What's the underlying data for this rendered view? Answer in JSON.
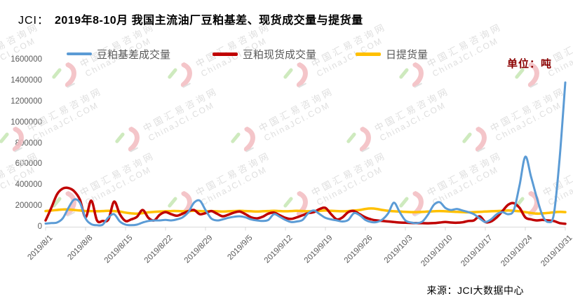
{
  "header": {
    "prefix": "JCI：",
    "title": "2019年8-10月 我国主流油厂豆粕基差、现货成交量与提货量"
  },
  "unit_label": "单位：吨",
  "source_label": "来源：JCI大数据中心",
  "watermark": {
    "line1": "中国汇易咨询网",
    "line2": "ChinaJCI.COM"
  },
  "colors": {
    "basis_line": "#5B9BD5",
    "spot_line": "#C00000",
    "pickup_line": "#FFC000",
    "axis_text": "#595959",
    "axis_line": "#D9D9D9",
    "unit_text": "#8B0000"
  },
  "chart_data": {
    "type": "line",
    "title": "2019年8-10月 我国主流油厂豆粕基差、现货成交量与提货量",
    "unit": "吨",
    "legend_position": "top",
    "grid": false,
    "ylim": [
      0,
      1600000
    ],
    "y_ticks": [
      0,
      200000,
      400000,
      600000,
      800000,
      1000000,
      1200000,
      1400000,
      1600000
    ],
    "start_date": "2019/8/1",
    "end_date": "2019/10/31",
    "days_total": 92,
    "x_tick_day_index": [
      0,
      7,
      14,
      21,
      28,
      35,
      42,
      49,
      56,
      63,
      70,
      77,
      84,
      91
    ],
    "x_tick_labels": [
      "2019/8/1",
      "2019/8/8",
      "2019/8/15",
      "2019/8/22",
      "2019/8/29",
      "2019/9/5",
      "2019/9/12",
      "2019/9/19",
      "2019/9/26",
      "2019/10/3",
      "2019/10/10",
      "2019/10/17",
      "2019/10/24",
      "2019/10/31"
    ],
    "series": [
      {
        "name": "豆粕基差成交量",
        "color": "#5B9BD5",
        "width": 3,
        "values": [
          30000,
          35000,
          40000,
          80000,
          180000,
          260000,
          230000,
          80000,
          25000,
          15000,
          20000,
          90000,
          120000,
          50000,
          20000,
          15000,
          20000,
          40000,
          55000,
          60000,
          60000,
          65000,
          60000,
          70000,
          90000,
          140000,
          230000,
          250000,
          160000,
          80000,
          60000,
          70000,
          85000,
          95000,
          100000,
          90000,
          70000,
          60000,
          55000,
          65000,
          120000,
          95000,
          65000,
          45000,
          50000,
          65000,
          130000,
          155000,
          120000,
          85000,
          70000,
          60000,
          50000,
          65000,
          130000,
          110000,
          65000,
          45000,
          45000,
          70000,
          130000,
          230000,
          140000,
          60000,
          40000,
          35000,
          50000,
          120000,
          210000,
          235000,
          180000,
          160000,
          170000,
          155000,
          140000,
          120000,
          80000,
          45000,
          70000,
          120000,
          140000,
          120000,
          160000,
          400000,
          670000,
          480000,
          280000,
          110000,
          45000,
          120000,
          650000,
          1380000
        ]
      },
      {
        "name": "豆粕现货成交量",
        "color": "#C00000",
        "width": 3.5,
        "values": [
          60000,
          180000,
          310000,
          365000,
          370000,
          340000,
          260000,
          90000,
          250000,
          60000,
          55000,
          70000,
          240000,
          120000,
          55000,
          70000,
          95000,
          160000,
          85000,
          60000,
          115000,
          140000,
          120000,
          105000,
          125000,
          150000,
          160000,
          120000,
          130000,
          150000,
          125000,
          100000,
          115000,
          135000,
          145000,
          120000,
          90000,
          80000,
          95000,
          125000,
          135000,
          110000,
          85000,
          75000,
          90000,
          110000,
          130000,
          140000,
          170000,
          180000,
          120000,
          70000,
          90000,
          140000,
          150000,
          120000,
          90000,
          70000,
          60000,
          55000,
          50000,
          45000,
          40000,
          38000,
          36000,
          35000,
          34000,
          33000,
          35000,
          40000,
          45000,
          40000,
          38000,
          42000,
          55000,
          60000,
          100000,
          45000,
          50000,
          90000,
          150000,
          210000,
          225000,
          180000,
          90000,
          70000,
          60000,
          65000,
          60000,
          55000,
          35000,
          28000
        ]
      },
      {
        "name": "日提货量",
        "color": "#FFC000",
        "width": 3.5,
        "values": [
          150000,
          155000,
          160000,
          165000,
          165000,
          160000,
          155000,
          150000,
          150000,
          148000,
          150000,
          152000,
          150000,
          145000,
          135000,
          128000,
          125000,
          130000,
          138000,
          142000,
          145000,
          148000,
          150000,
          150000,
          148000,
          150000,
          152000,
          150000,
          148000,
          150000,
          148000,
          145000,
          148000,
          150000,
          152000,
          150000,
          148000,
          145000,
          148000,
          150000,
          152000,
          150000,
          148000,
          150000,
          152000,
          150000,
          148000,
          150000,
          152000,
          155000,
          152000,
          150000,
          148000,
          150000,
          155000,
          160000,
          170000,
          175000,
          170000,
          160000,
          152000,
          148000,
          145000,
          142000,
          140000,
          140000,
          142000,
          145000,
          148000,
          150000,
          148000,
          145000,
          142000,
          140000,
          138000,
          140000,
          142000,
          145000,
          148000,
          150000,
          152000,
          155000,
          152000,
          148000,
          140000,
          132000,
          125000,
          128000,
          132000,
          138000,
          142000,
          140000
        ]
      }
    ]
  }
}
